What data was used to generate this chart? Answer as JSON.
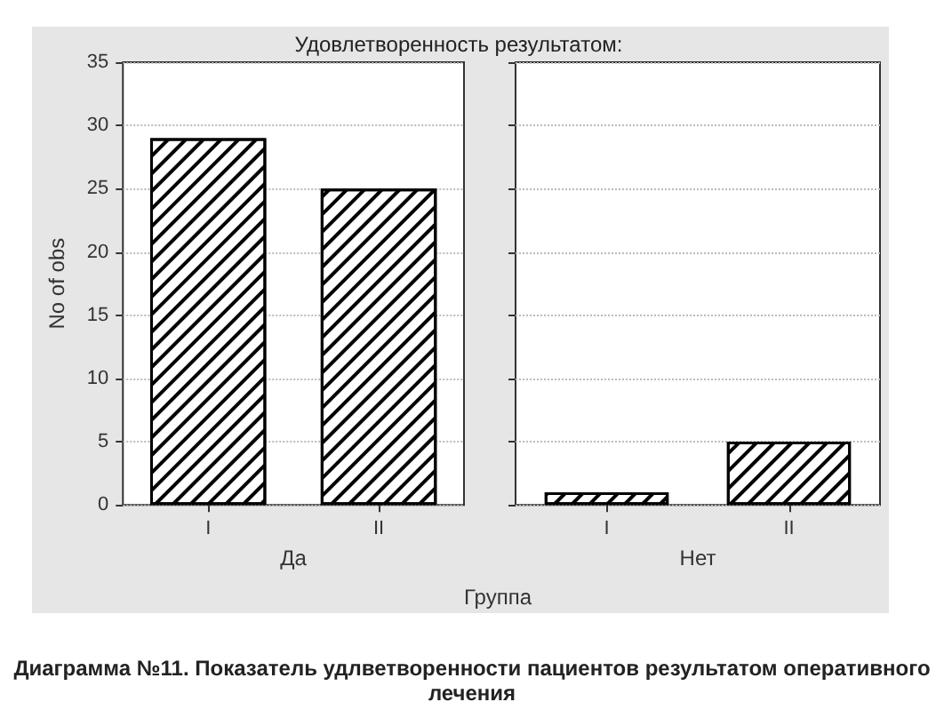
{
  "chart_data": [
    {
      "type": "bar",
      "title": "Удовлетворенность результатом:",
      "xlabel": "Да",
      "ylabel": "No of obs",
      "categories": [
        "I",
        "II"
      ],
      "values": [
        29,
        25
      ],
      "color": "#ffffff",
      "ylim": [
        0,
        35
      ],
      "yticks": [
        0,
        5,
        10,
        15,
        20,
        25,
        30,
        35
      ],
      "grid": "y"
    },
    {
      "type": "bar",
      "xlabel": "Нет",
      "categories": [
        "I",
        "II"
      ],
      "values": [
        1,
        5
      ],
      "color": "#ffffff",
      "ylim": [
        0,
        35
      ],
      "yticks": [
        0,
        5,
        10,
        15,
        20,
        25,
        30,
        35
      ],
      "grid": "y",
      "tick_labels": "x",
      "annotations": [
        "Группа",
        "Диаграмма №11. Показатель удлветворенности пациентов результатом оперативного лечения"
      ]
    }
  ]
}
